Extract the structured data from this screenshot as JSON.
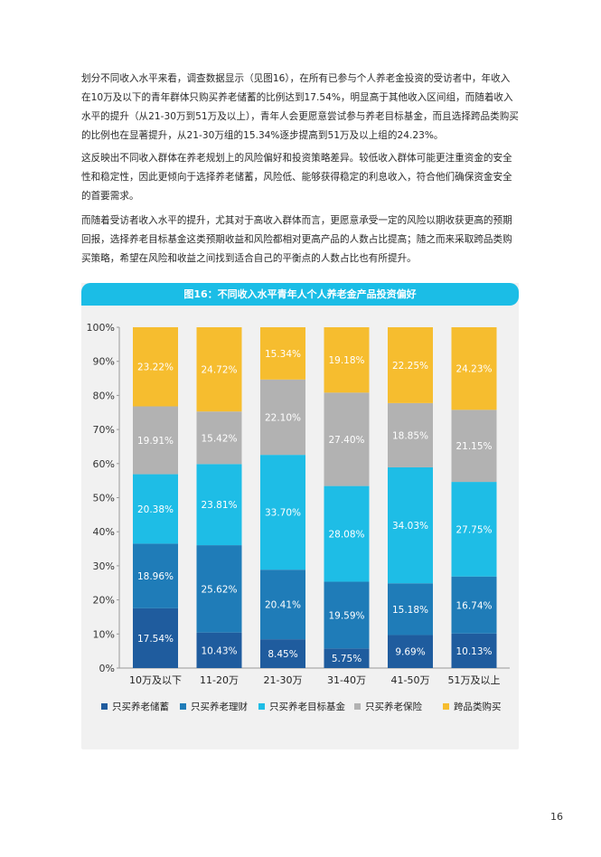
{
  "paragraphs": [
    "划分不同收入水平来看，调查数据显示（见图16），在所有已参与个人养老金投资的受访者中，年收入在10万及以下的青年群体只购买养老储蓄的比例达到17.54%，明显高于其他收入区间组，而随着收入水平的提升（从21-30万到51万及以上），青年人会更愿意尝试参与养老目标基金，而且选择跨品类购买的比例也在显著提升，从21-30万组的15.34%逐步提高到51万及以上组的24.23%。",
    "这反映出不同收入群体在养老规划上的风险偏好和投资策略差异。较低收入群体可能更注重资金的安全性和稳定性，因此更倾向于选择养老储蓄，风险低、能够获得稳定的利息收入，符合他们确保资金安全的首要需求。",
    "而随着受访者收入水平的提升，尤其对于高收入群体而言，更愿意承受一定的风险以期收获更高的预期回报，选择养老目标基金这类预期收益和风险都相对更高产品的人数占比提高；随之而来采取跨品类购买策略，希望在风险和收益之间找到适合自己的平衡点的人数占比也有所提升。"
  ],
  "page_number": "16",
  "chart_data": {
    "type": "bar",
    "stacked": true,
    "title": "图16：不同收入水平青年人个人养老金产品投资偏好",
    "categories": [
      "10万及以下",
      "11-20万",
      "21-30万",
      "31-40万",
      "41-50万",
      "51万及以上"
    ],
    "ylim": [
      0,
      100
    ],
    "yticks": [
      "0%",
      "10%",
      "20%",
      "30%",
      "40%",
      "50%",
      "60%",
      "70%",
      "80%",
      "90%",
      "100%"
    ],
    "grid": false,
    "legend_position": "bottom",
    "series": [
      {
        "name": "只买养老储蓄",
        "color": "#1f5c9e",
        "values": [
          17.54,
          10.43,
          8.45,
          5.75,
          9.69,
          10.13
        ],
        "labels": [
          "17.54%",
          "10.43%",
          "8.45%",
          "5.75%",
          "9.69%",
          "10.13%"
        ]
      },
      {
        "name": "只买养老理财",
        "color": "#1f7cb8",
        "values": [
          18.96,
          25.62,
          20.41,
          19.59,
          15.18,
          16.74
        ],
        "labels": [
          "18.96%",
          "25.62%",
          "20.41%",
          "19.59%",
          "15.18%",
          "16.74%"
        ]
      },
      {
        "name": "只买养老目标基金",
        "color": "#1ebde6",
        "values": [
          20.38,
          23.81,
          33.7,
          28.08,
          34.03,
          27.75
        ],
        "labels": [
          "20.38%",
          "23.81%",
          "33.70%",
          "28.08%",
          "34.03%",
          "27.75%"
        ]
      },
      {
        "name": "只买养老保险",
        "color": "#b2b2b2",
        "values": [
          19.91,
          15.42,
          22.1,
          27.4,
          18.85,
          21.15
        ],
        "labels": [
          "19.91%",
          "15.42%",
          "22.10%",
          "27.40%",
          "18.85%",
          "21.15%"
        ]
      },
      {
        "name": "跨品类购买",
        "color": "#f6bd2f",
        "values": [
          23.22,
          24.72,
          15.34,
          19.18,
          22.25,
          24.23
        ],
        "labels": [
          "23.22%",
          "24.72%",
          "15.34%",
          "19.18%",
          "22.25%",
          "24.23%"
        ]
      }
    ]
  }
}
